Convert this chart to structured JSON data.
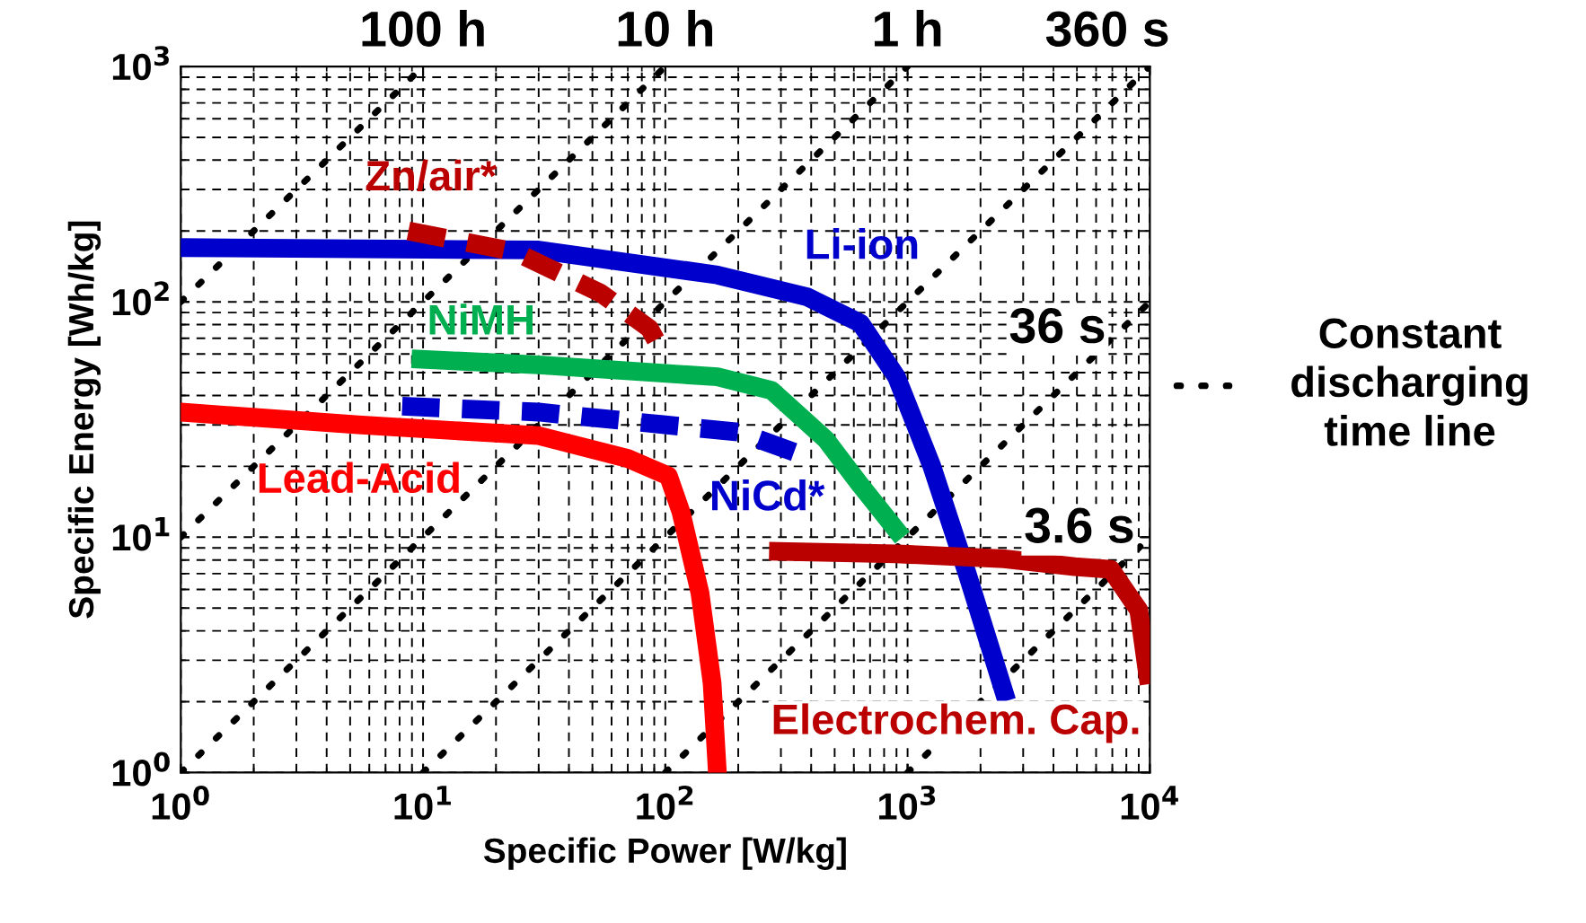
{
  "chart_data": {
    "type": "line",
    "xlabel": "Specific Power [W/kg]",
    "ylabel": "Specific Energy [Wh/kg]",
    "log": "xy",
    "grid": true,
    "xlim": [
      1,
      10000
    ],
    "ylim": [
      1,
      1000
    ],
    "xticks": [
      {
        "value": 1,
        "label": "10$^{0}$"
      },
      {
        "value": 10,
        "label": "10$^{1}$"
      },
      {
        "value": 100,
        "label": "10$^{2}$"
      },
      {
        "value": 1000,
        "label": "10$^{3}$"
      },
      {
        "value": 10000,
        "label": "10$^{4}$"
      }
    ],
    "yticks": [
      {
        "value": 1,
        "label": "10$^{0}$"
      },
      {
        "value": 10,
        "label": "10$^{1}$"
      },
      {
        "value": 100,
        "label": "10$^{2}$"
      },
      {
        "value": 1000,
        "label": "10$^{3}$"
      }
    ],
    "series": [
      {
        "name": "Li-ion",
        "color": "#0000cc",
        "line_style": "solid",
        "x": [
          1,
          30,
          164,
          385,
          640,
          900,
          1260,
          1770,
          2500
        ],
        "values": [
          170,
          166,
          130,
          105,
          81,
          48,
          20,
          6.9,
          2.2
        ]
      },
      {
        "name": "Zn/air*",
        "color": "#bb0000",
        "line_style": "dashed",
        "x": [
          8.7,
          24,
          54,
          86,
          95
        ],
        "values": [
          200,
          163,
          109,
          77,
          64
        ]
      },
      {
        "name": "NiMH",
        "color": "#00b050",
        "line_style": "solid",
        "x": [
          9.8,
          30,
          164,
          275,
          460,
          640,
          900
        ],
        "values": [
          57,
          54,
          48,
          42,
          26,
          16.6,
          10.7
        ]
      },
      {
        "name": "NiCd*",
        "color": "#0000cc",
        "line_style": "dashed",
        "x": [
          8.2,
          30,
          100,
          200,
          340
        ],
        "values": [
          36,
          34,
          30,
          28,
          23
        ]
      },
      {
        "name": "Lead-Acid",
        "color": "#ff0000",
        "line_style": "solid",
        "x": [
          1,
          5.4,
          30,
          70,
          103,
          116,
          139,
          156,
          164
        ],
        "values": [
          34,
          30,
          27,
          21.6,
          18.2,
          12.8,
          5.8,
          2.4,
          1
        ]
      },
      {
        "name": "Electrochem. Cap.",
        "color": "#bb0000",
        "line_style": "solid",
        "x": [
          293,
          900,
          2500,
          4900,
          6900,
          9000,
          9800
        ],
        "values": [
          8.7,
          8.5,
          8.1,
          7.5,
          7.3,
          4.9,
          2.6
        ]
      },
      {
        "color": "#000000",
        "line_style": "dotted",
        "x": [
          1,
          10
        ],
        "values": [
          100,
          1000
        ]
      },
      {
        "color": "#000000",
        "line_style": "dotted",
        "x": [
          1,
          100
        ],
        "values": [
          10,
          1000
        ]
      },
      {
        "color": "#000000",
        "line_style": "dotted",
        "x": [
          1,
          1000
        ],
        "values": [
          1,
          1000
        ]
      },
      {
        "color": "#000000",
        "line_style": "dotted",
        "x": [
          10,
          10000
        ],
        "values": [
          1,
          1000
        ]
      },
      {
        "color": "#000000",
        "line_style": "dotted",
        "x": [
          100,
          10000
        ],
        "values": [
          1,
          100
        ]
      },
      {
        "color": "#000000",
        "line_style": "dotted",
        "x": [
          1000,
          10000
        ],
        "values": [
          1,
          10
        ]
      }
    ],
    "annotations": [
      {
        "text": "100 h",
        "x": 10,
        "y": 1000
      },
      {
        "text": "10 h",
        "x": 100,
        "y": 1000
      },
      {
        "text": "1 h",
        "x": 1000,
        "y": 1000
      },
      {
        "text": "360 s",
        "x": 10000,
        "y": 1000
      },
      {
        "text": "36 s",
        "x": 7600,
        "y": 76
      },
      {
        "text": "3.6 s",
        "x": 10000,
        "y": 10
      },
      "Constant\ndischarging\ntime line"
    ]
  }
}
